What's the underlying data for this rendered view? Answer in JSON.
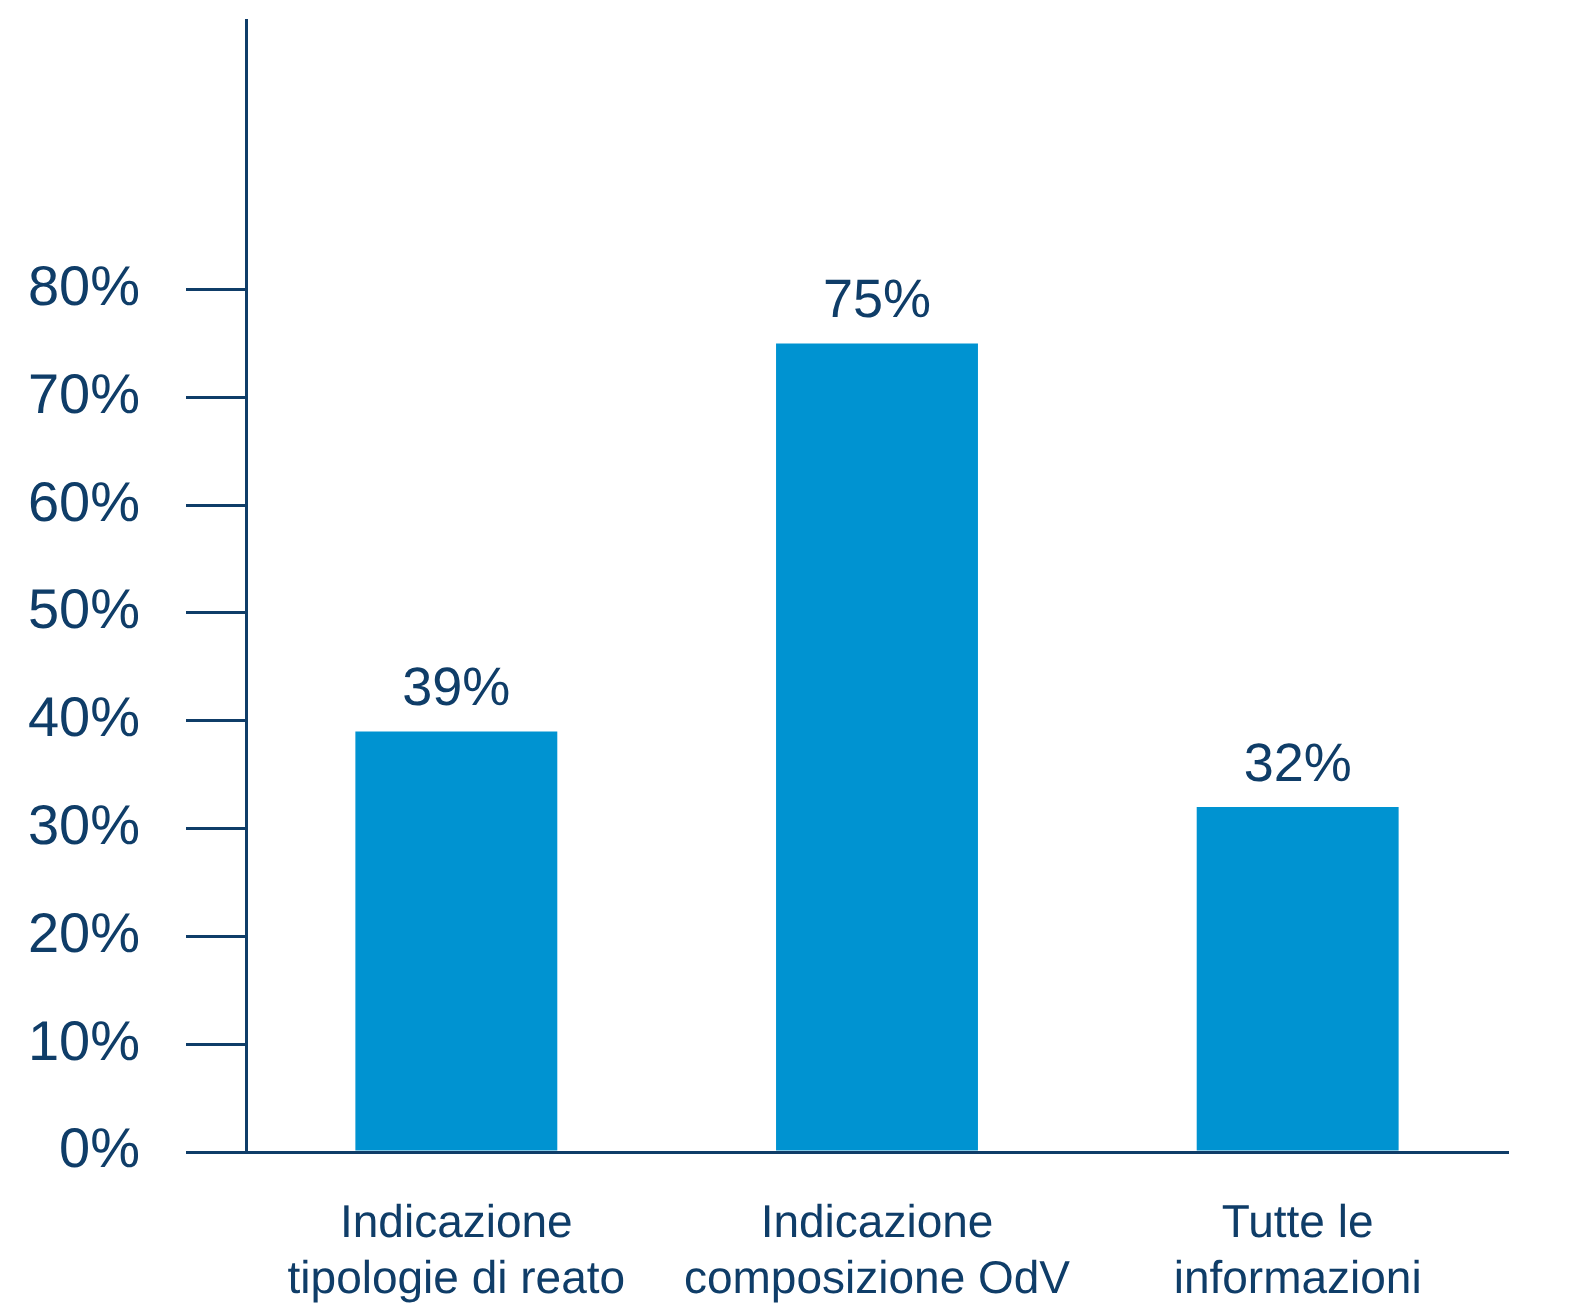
{
  "chart_data": {
    "type": "bar",
    "categories": [
      "Indicazione tipologie di reato",
      "Indicazione composizione OdV",
      "Tutte le informazioni"
    ],
    "values": [
      39,
      75,
      32
    ],
    "color": "#0093d1",
    "value_labels": [
      "39%",
      "75%",
      "32%"
    ],
    "ylim": [
      0,
      105
    ],
    "yticks": [
      {
        "value": 0,
        "label": "0%"
      },
      {
        "value": 10,
        "label": "10%"
      },
      {
        "value": 20,
        "label": "20%"
      },
      {
        "value": 30,
        "label": "30%"
      },
      {
        "value": 40,
        "label": "40%"
      },
      {
        "value": 50,
        "label": "50%"
      },
      {
        "value": 60,
        "label": "60%"
      },
      {
        "value": 70,
        "label": "70%"
      },
      {
        "value": 80,
        "label": "80%"
      }
    ]
  }
}
